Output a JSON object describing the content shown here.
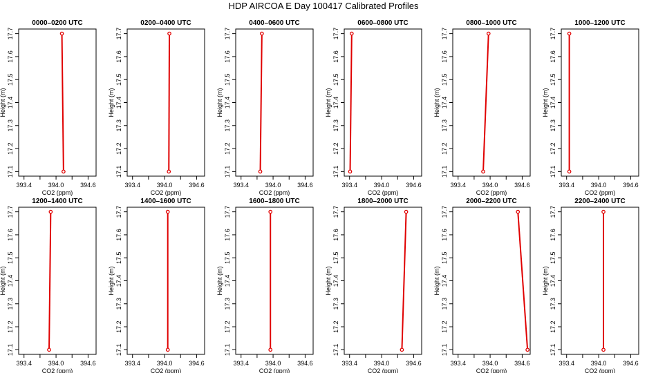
{
  "page": {
    "title": "HDP AIRCOA E  Day 100417  Calibrated Profiles"
  },
  "colors": {
    "series": "#e00000",
    "axis": "#000000",
    "background": "#ffffff"
  },
  "axes": {
    "xlabel": "CO2 (ppm)",
    "ylabel": "Height (m)",
    "xlim": [
      393.3,
      394.75
    ],
    "ylim": [
      17.08,
      17.72
    ],
    "xticks": [
      393.4,
      393.7,
      394.0,
      394.3,
      394.6
    ],
    "xtick_labels": [
      "393.4",
      "",
      "394.0",
      "",
      "394.6"
    ],
    "yticks": [
      17.1,
      17.2,
      17.3,
      17.4,
      17.5,
      17.6,
      17.7
    ],
    "ytick_labels": [
      "17.1",
      "17.2",
      "17.3",
      "17.4",
      "17.5",
      "17.6",
      "17.7"
    ]
  },
  "chart_data": [
    {
      "type": "line",
      "title": "0000–0200 UTC",
      "x": [
        394.14,
        394.11
      ],
      "y": [
        17.1,
        17.7
      ]
    },
    {
      "type": "line",
      "title": "0200–0400 UTC",
      "x": [
        394.08,
        394.09
      ],
      "y": [
        17.1,
        17.7
      ]
    },
    {
      "type": "line",
      "title": "0400–0600 UTC",
      "x": [
        393.76,
        393.79
      ],
      "y": [
        17.1,
        17.7
      ]
    },
    {
      "type": "line",
      "title": "0600–0800 UTC",
      "x": [
        393.41,
        393.44
      ],
      "y": [
        17.1,
        17.7
      ]
    },
    {
      "type": "line",
      "title": "0800–1000 UTC",
      "x": [
        393.87,
        393.97
      ],
      "y": [
        17.1,
        17.7
      ]
    },
    {
      "type": "line",
      "title": "1000–1200 UTC",
      "x": [
        393.45,
        393.45
      ],
      "y": [
        17.1,
        17.7
      ]
    },
    {
      "type": "line",
      "title": "1200–1400 UTC",
      "x": [
        393.87,
        393.9
      ],
      "y": [
        17.1,
        17.7
      ]
    },
    {
      "type": "line",
      "title": "1400–1600 UTC",
      "x": [
        394.06,
        394.06
      ],
      "y": [
        17.1,
        17.7
      ]
    },
    {
      "type": "line",
      "title": "1600–1800 UTC",
      "x": [
        393.95,
        393.95
      ],
      "y": [
        17.1,
        17.7
      ]
    },
    {
      "type": "line",
      "title": "1800–2000 UTC",
      "x": [
        394.38,
        394.46
      ],
      "y": [
        17.1,
        17.7
      ]
    },
    {
      "type": "line",
      "title": "2000–2200 UTC",
      "x": [
        394.7,
        394.52
      ],
      "y": [
        17.1,
        17.7
      ]
    },
    {
      "type": "line",
      "title": "2200–2400 UTC",
      "x": [
        394.09,
        394.09
      ],
      "y": [
        17.1,
        17.7
      ]
    }
  ]
}
